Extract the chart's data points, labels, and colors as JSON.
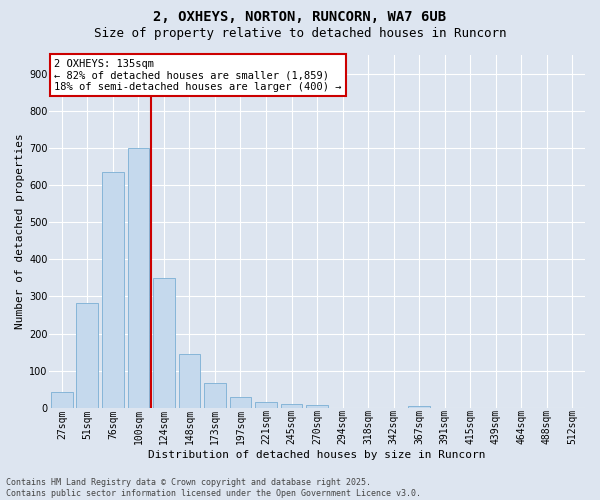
{
  "title1": "2, OXHEYS, NORTON, RUNCORN, WA7 6UB",
  "title2": "Size of property relative to detached houses in Runcorn",
  "xlabel": "Distribution of detached houses by size in Runcorn",
  "ylabel": "Number of detached properties",
  "categories": [
    "27sqm",
    "51sqm",
    "76sqm",
    "100sqm",
    "124sqm",
    "148sqm",
    "173sqm",
    "197sqm",
    "221sqm",
    "245sqm",
    "270sqm",
    "294sqm",
    "318sqm",
    "342sqm",
    "367sqm",
    "391sqm",
    "415sqm",
    "439sqm",
    "464sqm",
    "488sqm",
    "512sqm"
  ],
  "values": [
    42,
    283,
    635,
    700,
    350,
    145,
    68,
    28,
    15,
    10,
    8,
    0,
    0,
    0,
    5,
    0,
    0,
    0,
    0,
    0,
    0
  ],
  "bar_color": "#c5d9ed",
  "bar_edge_color": "#7aafd4",
  "vline_pos": 3.5,
  "vline_color": "#cc0000",
  "annotation_text": "2 OXHEYS: 135sqm\n← 82% of detached houses are smaller (1,859)\n18% of semi-detached houses are larger (400) →",
  "annotation_box_facecolor": "#ffffff",
  "annotation_box_edgecolor": "#cc0000",
  "ylim": [
    0,
    950
  ],
  "yticks": [
    0,
    100,
    200,
    300,
    400,
    500,
    600,
    700,
    800,
    900
  ],
  "bg_color": "#dde5f0",
  "grid_color": "#ffffff",
  "footer": "Contains HM Land Registry data © Crown copyright and database right 2025.\nContains public sector information licensed under the Open Government Licence v3.0.",
  "title_fontsize": 10,
  "subtitle_fontsize": 9,
  "ylabel_fontsize": 8,
  "xlabel_fontsize": 8,
  "tick_fontsize": 7,
  "ann_fontsize": 7.5,
  "footer_fontsize": 6
}
